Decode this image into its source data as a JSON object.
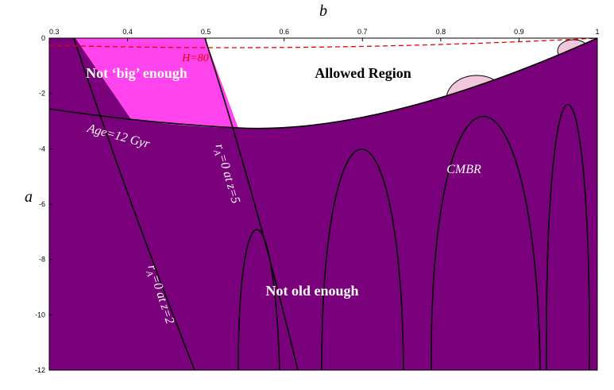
{
  "chart_data": {
    "type": "region",
    "xlabel": "b",
    "ylabel": "a",
    "xlim": [
      0.3,
      1
    ],
    "ylim": [
      -12,
      0
    ],
    "xticks": [
      0.3,
      0.4,
      0.5,
      0.6,
      0.7,
      0.8,
      0.9,
      1
    ],
    "yticks": [
      0,
      -2,
      -4,
      -6,
      -8,
      -10,
      -12
    ],
    "annotations": {
      "not_big": "Not ‘big’ enough",
      "allowed": "Allowed Region",
      "hubble": "H=80",
      "age": "Age=12 Gyr",
      "cmbr": "CMBR",
      "not_old": "Not old enough",
      "ra_z5": [
        "r",
        "A",
        "=0 at z=5"
      ],
      "ra_z2": [
        "r",
        "A",
        "=0 at z=2"
      ]
    }
  }
}
